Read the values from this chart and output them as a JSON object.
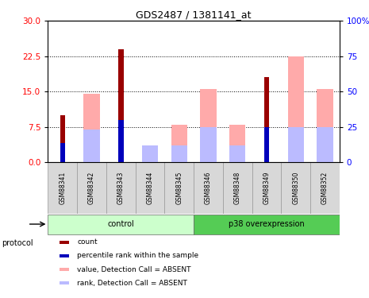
{
  "title": "GDS2487 / 1381141_at",
  "samples": [
    "GSM88341",
    "GSM88342",
    "GSM88343",
    "GSM88344",
    "GSM88345",
    "GSM88346",
    "GSM88348",
    "GSM88349",
    "GSM88350",
    "GSM88352"
  ],
  "control_indices": [
    0,
    1,
    2,
    3,
    4
  ],
  "p38_indices": [
    5,
    6,
    7,
    8,
    9
  ],
  "count_values": [
    10,
    0,
    24,
    0,
    0,
    0,
    0,
    18,
    0,
    0
  ],
  "percentile_rank_values": [
    4,
    0,
    9,
    0,
    0,
    0,
    0,
    7.5,
    0,
    0
  ],
  "absent_value_values": [
    0,
    14.5,
    0,
    3.5,
    8.0,
    15.5,
    8.0,
    0,
    22.5,
    15.5
  ],
  "absent_rank_values": [
    0,
    7.0,
    0,
    3.5,
    3.5,
    7.5,
    3.5,
    0,
    7.5,
    7.5
  ],
  "ylim_left": [
    0,
    30
  ],
  "ylim_right": [
    0,
    100
  ],
  "yticks_left": [
    0,
    7.5,
    15,
    22.5,
    30
  ],
  "yticks_right": [
    0,
    25,
    50,
    75,
    100
  ],
  "ytick_labels_right": [
    "0",
    "25",
    "50",
    "75",
    "100%"
  ],
  "color_count": "#990000",
  "color_percentile": "#0000bb",
  "color_absent_value": "#ffaaaa",
  "color_absent_rank": "#bbbbff",
  "color_control_bg": "#ccffcc",
  "color_p38_bg": "#55cc55",
  "legend_items": [
    {
      "label": "count",
      "color": "#990000"
    },
    {
      "label": "percentile rank within the sample",
      "color": "#0000bb"
    },
    {
      "label": "value, Detection Call = ABSENT",
      "color": "#ffaaaa"
    },
    {
      "label": "rank, Detection Call = ABSENT",
      "color": "#bbbbff"
    }
  ]
}
